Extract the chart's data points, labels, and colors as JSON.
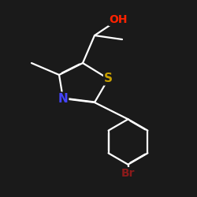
{
  "background_color": "#1a1a1a",
  "bond_color": "#ffffff",
  "atom_colors": {
    "S": "#c8a000",
    "N": "#4444ff",
    "O": "#ff2200",
    "Br": "#8b1a1a",
    "C": "#ffffff"
  },
  "figsize": [
    2.5,
    2.5
  ],
  "dpi": 100,
  "lw": 1.6,
  "fontsize": 10
}
